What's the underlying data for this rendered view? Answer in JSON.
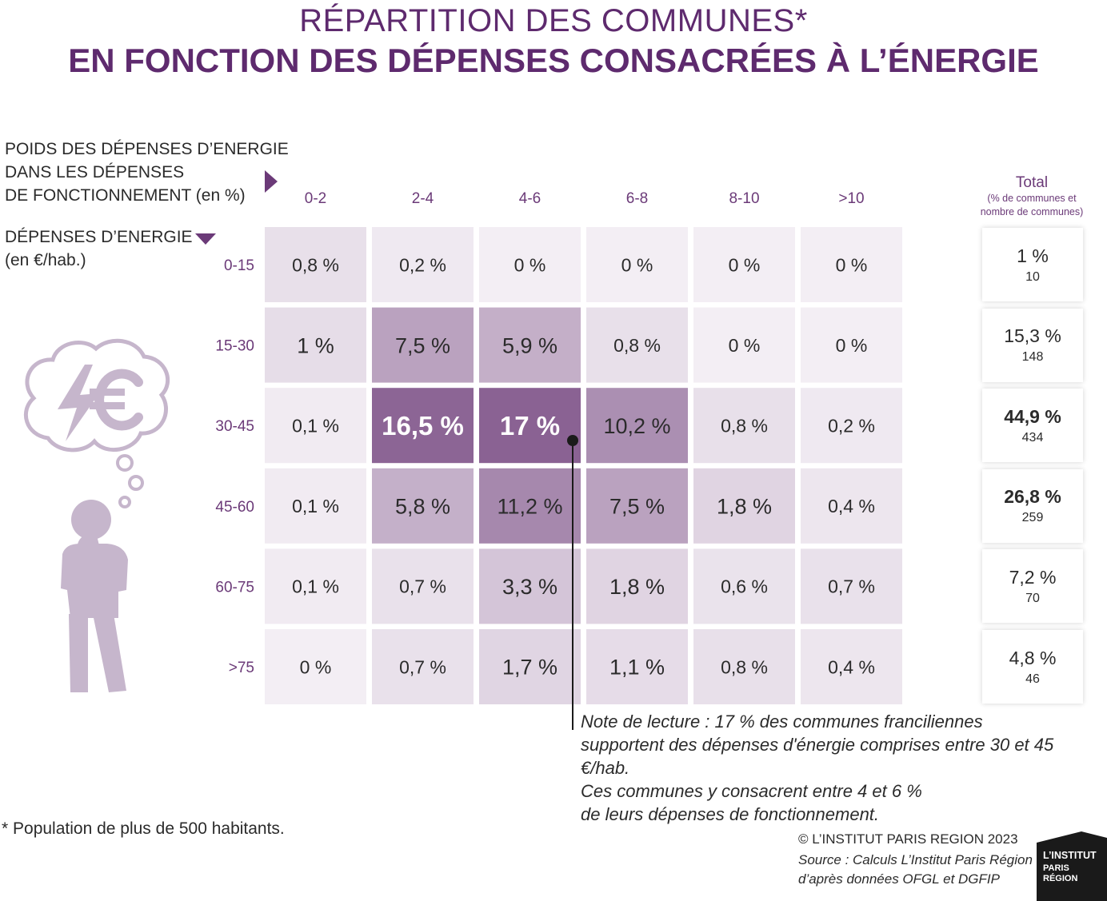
{
  "title": {
    "line1": "RÉPARTITION DES COMMUNES*",
    "line2": "EN FONCTION DES DÉPENSES CONSACRÉES À L’ÉNERGIE"
  },
  "axis_horizontal_label": [
    "POIDS DES DÉPENSES D’ENERGIE",
    "DANS LES DÉPENSES",
    "DE FONCTIONNEMENT (en %)"
  ],
  "axis_vertical_label": [
    "DÉPENSES D’ENERGIE",
    "(en €/hab.)"
  ],
  "total_header": {
    "title": "Total",
    "subtitle": [
      "(% de communes et",
      "nombre de communes)"
    ]
  },
  "colors": {
    "title": "#5e2a6e",
    "accent": "#6b3a78",
    "cell_min": "#f3eef4",
    "cell_max": "#8a6293"
  },
  "chart_data": {
    "type": "heatmap",
    "x_categories": [
      "0-2",
      "2-4",
      "4-6",
      "6-8",
      "8-10",
      ">10"
    ],
    "y_categories": [
      "0-15",
      "15-30",
      "30-45",
      "45-60",
      "60-75",
      ">75"
    ],
    "values": [
      [
        0.8,
        0.2,
        0,
        0,
        0,
        0
      ],
      [
        1,
        7.5,
        5.9,
        0.8,
        0,
        0
      ],
      [
        0.1,
        16.5,
        17,
        10.2,
        0.8,
        0.2
      ],
      [
        0.1,
        5.8,
        11.2,
        7.5,
        1.8,
        0.4
      ],
      [
        0.1,
        0.7,
        3.3,
        1.8,
        0.6,
        0.7
      ],
      [
        0,
        0.7,
        1.7,
        1.1,
        0.8,
        0.4
      ]
    ],
    "labels": [
      [
        "0,8 %",
        "0,2 %",
        "0 %",
        "0 %",
        "0 %",
        "0 %"
      ],
      [
        "1 %",
        "7,5 %",
        "5,9 %",
        "0,8 %",
        "0 %",
        "0 %"
      ],
      [
        "0,1 %",
        "16,5 %",
        "17 %",
        "10,2 %",
        "0,8 %",
        "0,2 %"
      ],
      [
        "0,1 %",
        "5,8 %",
        "11,2 %",
        "7,5 %",
        "1,8 %",
        "0,4 %"
      ],
      [
        "0,1 %",
        "0,7 %",
        "3,3 %",
        "1,8 %",
        "0,6 %",
        "0,7 %"
      ],
      [
        "0 %",
        "0,7 %",
        "1,7 %",
        "1,1 %",
        "0,8 %",
        "0,4 %"
      ]
    ],
    "totals": [
      {
        "percent": "1 %",
        "count": "10"
      },
      {
        "percent": "15,3 %",
        "count": "148"
      },
      {
        "percent": "44,9 %",
        "count": "434"
      },
      {
        "percent": "26,8 %",
        "count": "259"
      },
      {
        "percent": "7,2 %",
        "count": "70"
      },
      {
        "percent": "4,8 %",
        "count": "46"
      }
    ]
  },
  "reading_note": [
    "Note de lecture : 17 % des communes franciliennes",
    "supportent des dépenses d'énergie comprises entre 30 et 45 €/hab.",
    "Ces communes y consacrent entre 4 et 6 %",
    "de leurs dépenses de fonctionnement."
  ],
  "footnote": "* Population de plus de 500 habitants.",
  "copyright": "© L’INSTITUT PARIS REGION 2023",
  "source": [
    "Source : Calculs L’Institut Paris Région",
    "d’après données OFGL et DGFIP"
  ],
  "logo": {
    "lines": [
      "L’INSTITUT",
      "PARIS",
      "RÉGION"
    ]
  }
}
